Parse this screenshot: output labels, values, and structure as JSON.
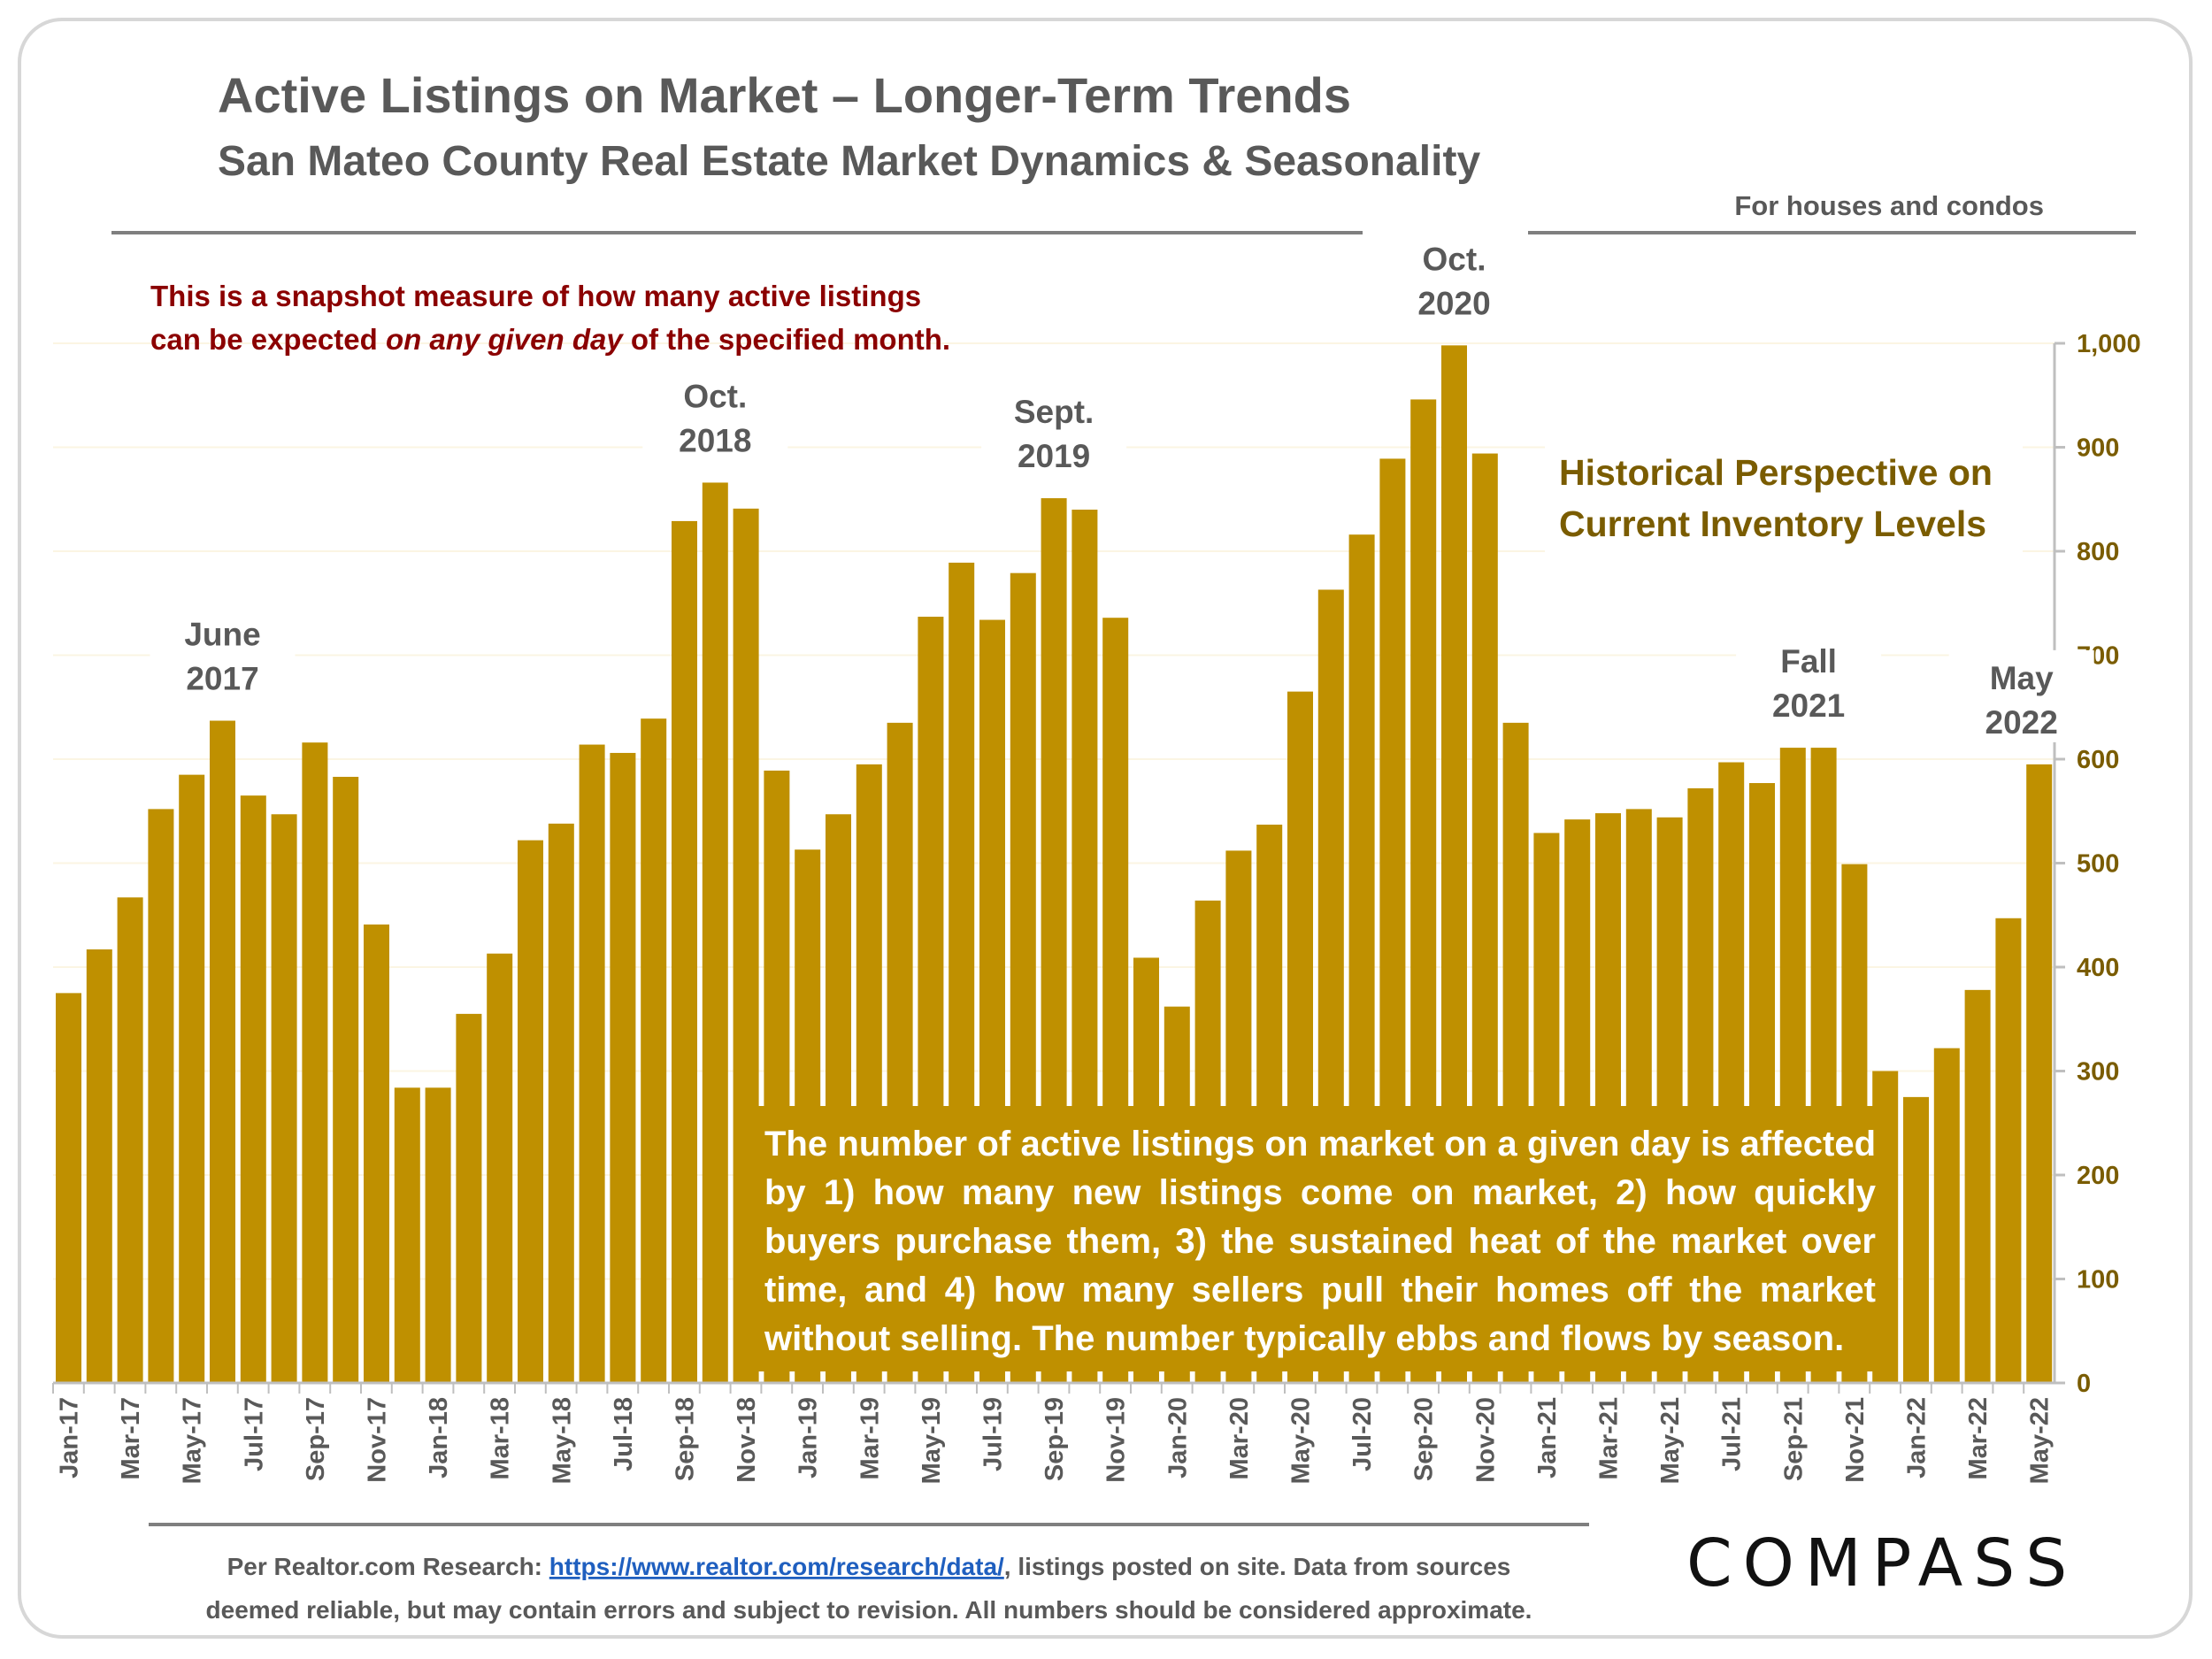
{
  "header": {
    "title": "Active Listings on Market – Longer-Term Trends",
    "subtitle": "San Mateo County Real Estate Market Dynamics & Seasonality",
    "scope_note": "For houses and condos"
  },
  "snapshot_note": {
    "line1": "This is a snapshot measure of how many active listings",
    "line2_pre": "can be expected ",
    "line2_em": "on any given day",
    "line2_post": " of the specified month."
  },
  "perspective": {
    "line1": "Historical Perspective on",
    "line2": "Current Inventory Levels"
  },
  "callouts": [
    {
      "lines": [
        "June",
        "2017"
      ],
      "month": "Jun-17"
    },
    {
      "lines": [
        "Oct.",
        "2018"
      ],
      "month": "Oct-18"
    },
    {
      "lines": [
        "Sept.",
        "2019"
      ],
      "month": "Sep-19"
    },
    {
      "lines": [
        "Oct.",
        "2020"
      ],
      "month": "Oct-20"
    },
    {
      "lines": [
        "Fall",
        "2021"
      ],
      "month": "Oct-21"
    },
    {
      "lines": [
        "May",
        "2022"
      ],
      "month": "May-22"
    }
  ],
  "explanation": "The number of active listings on market on a given day is affected by 1) how many new listings come on market, 2) how quickly buyers purchase them, 3) the sustained heat of the market over time, and 4) how many sellers pull their homes off the market without selling. The number typically ebbs and flows by season.",
  "footer": {
    "pre": "Per Realtor.com Research:  ",
    "link": "https://www.realtor.com/research/data/",
    "post": ", listings posted on site. Data from sources",
    "line2": "deemed reliable, but may contain errors and subject to revision. All numbers should be considered approximate."
  },
  "brand": {
    "logo_text": "COMPASS"
  },
  "colors": {
    "bar": "#bf9000",
    "axis_label": "#7a5c00",
    "note": "#8b0000",
    "text": "#595959"
  },
  "chart_data": {
    "type": "bar",
    "title": "Active Listings on Market – Longer-Term Trends",
    "xlabel": "",
    "ylabel": "",
    "ylim": [
      0,
      1000
    ],
    "yticks": [
      0,
      100,
      200,
      300,
      400,
      500,
      600,
      700,
      800,
      900,
      1000
    ],
    "ytick_labels": [
      "0",
      "100",
      "200",
      "300",
      "400",
      "500",
      "600",
      "700",
      "800",
      "900",
      "1,000"
    ],
    "grid": true,
    "categories": [
      "Jan-17",
      "Feb-17",
      "Mar-17",
      "Apr-17",
      "May-17",
      "Jun-17",
      "Jul-17",
      "Aug-17",
      "Sep-17",
      "Oct-17",
      "Nov-17",
      "Dec-17",
      "Jan-18",
      "Feb-18",
      "Mar-18",
      "Apr-18",
      "May-18",
      "Jun-18",
      "Jul-18",
      "Aug-18",
      "Sep-18",
      "Oct-18",
      "Nov-18",
      "Dec-18",
      "Jan-19",
      "Feb-19",
      "Mar-19",
      "Apr-19",
      "May-19",
      "Jun-19",
      "Jul-19",
      "Aug-19",
      "Sep-19",
      "Oct-19",
      "Nov-19",
      "Dec-19",
      "Jan-20",
      "Feb-20",
      "Mar-20",
      "Apr-20",
      "May-20",
      "Jun-20",
      "Jul-20",
      "Aug-20",
      "Sep-20",
      "Oct-20",
      "Nov-20",
      "Dec-20",
      "Jan-21",
      "Feb-21",
      "Mar-21",
      "Apr-21",
      "May-21",
      "Jun-21",
      "Jul-21",
      "Aug-21",
      "Sep-21",
      "Oct-21",
      "Nov-21",
      "Dec-21",
      "Jan-22",
      "Feb-22",
      "Mar-22",
      "Apr-22",
      "May-22"
    ],
    "tick_labels": [
      "Jan-17",
      "Mar-17",
      "May-17",
      "Jul-17",
      "Sep-17",
      "Nov-17",
      "Jan-18",
      "Mar-18",
      "May-18",
      "Jul-18",
      "Sep-18",
      "Nov-18",
      "Jan-19",
      "Mar-19",
      "May-19",
      "Jul-19",
      "Sep-19",
      "Nov-19",
      "Jan-20",
      "Mar-20",
      "May-20",
      "Jul-20",
      "Sep-20",
      "Nov-20",
      "Jan-21",
      "Mar-21",
      "May-21",
      "Jul-21",
      "Sep-21",
      "Nov-21",
      "Jan-22",
      "Mar-22",
      "May-22"
    ],
    "values": [
      375,
      417,
      467,
      552,
      585,
      637,
      565,
      547,
      616,
      583,
      441,
      284,
      284,
      355,
      413,
      522,
      538,
      614,
      606,
      639,
      829,
      866,
      841,
      589,
      513,
      547,
      595,
      635,
      737,
      789,
      734,
      779,
      851,
      840,
      736,
      409,
      362,
      464,
      512,
      537,
      665,
      763,
      816,
      889,
      946,
      998,
      894,
      635,
      529,
      542,
      548,
      552,
      544,
      572,
      597,
      577,
      611,
      611,
      499,
      300,
      275,
      322,
      378,
      447,
      595
    ]
  }
}
